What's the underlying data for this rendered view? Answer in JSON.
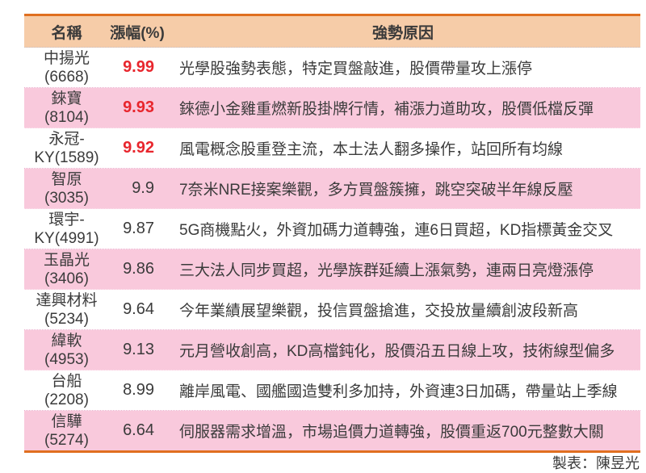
{
  "table": {
    "headers": {
      "name": "名稱",
      "change": "漲幅(%)",
      "reason": "強勢原因"
    },
    "rows": [
      {
        "name_line1": "中揚光",
        "name_line2": "(6668)",
        "change": "9.99",
        "change_color": "#e8262d",
        "reason": "光學股強勢表態，特定買盤敲進，股價帶量攻上漲停"
      },
      {
        "name_line1": "錸寶",
        "name_line2": "(8104)",
        "change": "9.93",
        "change_color": "#e8262d",
        "reason": "錸德小金雞重燃新股掛牌行情，補漲力道助攻，股價低檔反彈"
      },
      {
        "name_line1": "永冠-",
        "name_line2": "KY(1589)",
        "change": "9.92",
        "change_color": "#e8262d",
        "reason": "風電概念股重登主流，本土法人翻多操作，站回所有均線"
      },
      {
        "name_line1": "智原",
        "name_line2": "(3035)",
        "change": "9.9",
        "change_color": "#3b3b3b",
        "reason": "7奈米NRE接案樂觀，多方買盤簇擁，跳空突破半年線反壓"
      },
      {
        "name_line1": "環宇-",
        "name_line2": "KY(4991)",
        "change": "9.87",
        "change_color": "#3b3b3b",
        "reason": "5G商機點火，外資加碼力道轉強，連6日買超，KD指標黃金交叉"
      },
      {
        "name_line1": "玉晶光",
        "name_line2": "(3406)",
        "change": "9.86",
        "change_color": "#3b3b3b",
        "reason": "三大法人同步買超，光學族群延續上漲氣勢，連兩日亮燈漲停"
      },
      {
        "name_line1": "達興材料",
        "name_line2": "(5234)",
        "change": "9.64",
        "change_color": "#3b3b3b",
        "reason": "今年業績展望樂觀，投信買盤搶進，交投放量續創波段新高"
      },
      {
        "name_line1": "緯軟",
        "name_line2": "(4953)",
        "change": "9.13",
        "change_color": "#3b3b3b",
        "reason": "元月營收創高，KD高檔鈍化，股價沿五日線上攻，技術線型偏多"
      },
      {
        "name_line1": "台船",
        "name_line2": "(2208)",
        "change": "8.99",
        "change_color": "#3b3b3b",
        "reason": "離岸風電、國艦國造雙利多加持，外資連3日加碼，帶量站上季線"
      },
      {
        "name_line1": "信驊",
        "name_line2": "(5274)",
        "change": "6.64",
        "change_color": "#3b3b3b",
        "reason": "伺服器需求增溫，市場追價力道轉強，股價重返700元整數大關"
      }
    ]
  },
  "footer": {
    "credit": "製表：陳昱光"
  },
  "colors": {
    "border_orange": "#e06f20",
    "header_bg": "#f6cca8",
    "row_pink": "#f9c9dc",
    "row_white": "#ffffff",
    "value_red": "#e8262d",
    "text_dark": "#3b3b3b",
    "dotted_divider": "#eaa9ca"
  },
  "chart_data": {
    "type": "table",
    "title": "",
    "columns": [
      "名稱",
      "漲幅(%)",
      "強勢原因"
    ],
    "rows": [
      [
        "中揚光(6668)",
        9.99,
        "光學股強勢表態，特定買盤敲進，股價帶量攻上漲停"
      ],
      [
        "錸寶(8104)",
        9.93,
        "錸德小金雞重燃新股掛牌行情，補漲力道助攻，股價低檔反彈"
      ],
      [
        "永冠-KY(1589)",
        9.92,
        "風電概念股重登主流，本土法人翻多操作，站回所有均線"
      ],
      [
        "智原(3035)",
        9.9,
        "7奈米NRE接案樂觀，多方買盤簇擁，跳空突破半年線反壓"
      ],
      [
        "環宇-KY(4991)",
        9.87,
        "5G商機點火，外資加碼力道轉強，連6日買超，KD指標黃金交叉"
      ],
      [
        "玉晶光(3406)",
        9.86,
        "三大法人同步買超，光學族群延續上漲氣勢，連兩日亮燈漲停"
      ],
      [
        "達興材料(5234)",
        9.64,
        "今年業績展望樂觀，投信買盤搶進，交投放量續創波段新高"
      ],
      [
        "緯軟(4953)",
        9.13,
        "元月營收創高，KD高檔鈍化，股價沿五日線上攻，技術線型偏多"
      ],
      [
        "台船(2208)",
        8.99,
        "離岸風電、國艦國造雙利多加持，外資連3日加碼，帶量站上季線"
      ],
      [
        "信驊(5274)",
        6.64,
        "伺服器需求增溫，市場追價力道轉強，股價重返700元整數大關"
      ]
    ],
    "credit": "製表：陳昱光"
  }
}
